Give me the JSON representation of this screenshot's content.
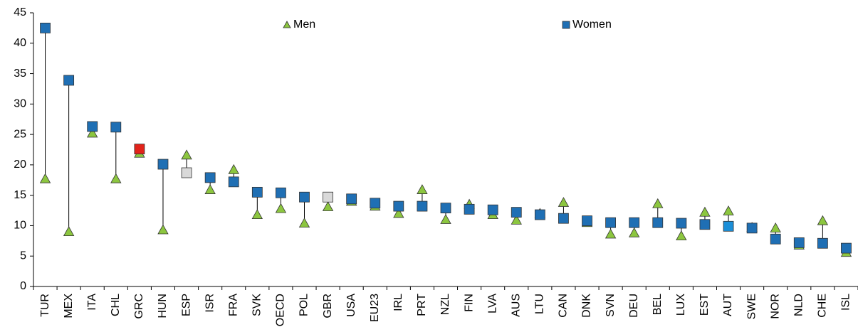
{
  "chart_data": {
    "type": "dumbbell",
    "categories": [
      "TUR",
      "MEX",
      "ITA",
      "CHL",
      "GRC",
      "HUN",
      "ESP",
      "ISR",
      "FRA",
      "SVK",
      "OECD",
      "POL",
      "GBR",
      "USA",
      "EU23",
      "IRL",
      "PRT",
      "NZL",
      "FIN",
      "LVA",
      "AUS",
      "LTU",
      "CAN",
      "DNK",
      "SVN",
      "DEU",
      "BEL",
      "LUX",
      "EST",
      "AUT",
      "SWE",
      "NOR",
      "NLD",
      "CHE",
      "ISL"
    ],
    "series": [
      {
        "name": "Men",
        "color": "#8cc63f",
        "marker": "triangle",
        "values": [
          17.7,
          9.0,
          25.2,
          17.7,
          21.9,
          9.3,
          21.6,
          15.9,
          19.2,
          11.8,
          12.8,
          10.4,
          13.1,
          14.0,
          13.2,
          12.0,
          15.9,
          11.0,
          13.5,
          11.8,
          10.9,
          12.0,
          13.8,
          10.5,
          8.6,
          8.8,
          13.6,
          8.3,
          12.2,
          12.4,
          9.7,
          9.6,
          6.8,
          10.8,
          5.6
        ]
      },
      {
        "name": "Women",
        "color": "#1f6fb4",
        "marker": "square",
        "values": [
          42.5,
          33.9,
          26.3,
          26.2,
          22.6,
          20.1,
          18.7,
          17.9,
          17.2,
          15.5,
          15.4,
          14.7,
          14.7,
          14.4,
          13.7,
          13.2,
          13.2,
          12.9,
          12.7,
          12.6,
          12.2,
          11.8,
          11.2,
          10.8,
          10.5,
          10.5,
          10.5,
          10.4,
          10.2,
          9.9,
          9.6,
          7.8,
          7.2,
          7.1,
          6.3
        ],
        "highlight_colors": {
          "GRC": "#e2231a",
          "ESP": "#d9d9d9",
          "GBR": "#d9d9d9",
          "AUT": "#1b8fd8"
        }
      }
    ],
    "ylim": [
      0,
      45
    ],
    "yticks": [
      0,
      5,
      10,
      15,
      20,
      25,
      30,
      35,
      40,
      45
    ],
    "legend": "top"
  }
}
